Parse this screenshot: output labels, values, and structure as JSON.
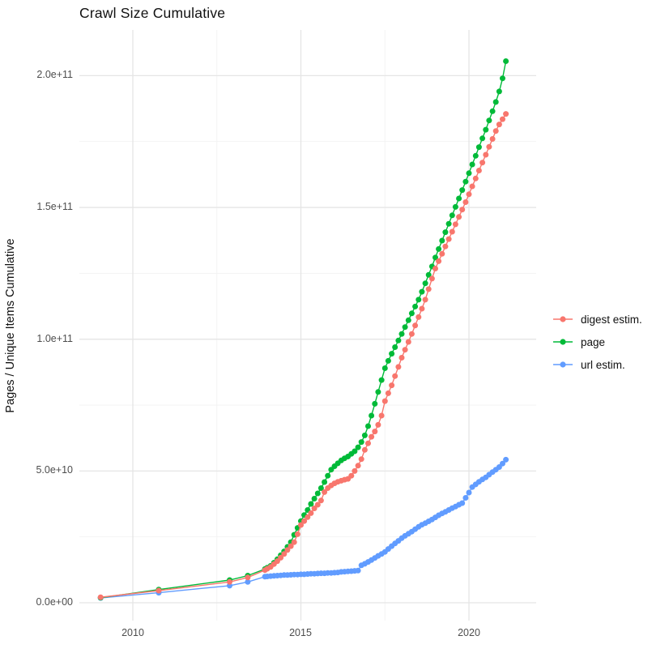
{
  "title": "Crawl Size Cumulative",
  "y_axis": {
    "title": "Pages / Unique Items Cumulative",
    "ticks": [
      "2.0e+11",
      "1.5e+11",
      "1.0e+11",
      "5.0e+10",
      "0.0e+00"
    ]
  },
  "x_axis": {
    "ticks": [
      "2010",
      "2015",
      "2020"
    ]
  },
  "legend": {
    "items": [
      {
        "label": "digest estim.",
        "color": "#F8766D"
      },
      {
        "label": "page",
        "color": "#00BA38"
      },
      {
        "label": "url estim.",
        "color": "#619CFF"
      }
    ]
  },
  "chart_data": {
    "type": "line",
    "title": "Crawl Size Cumulative",
    "xlabel": "",
    "ylabel": "Pages / Unique Items Cumulative",
    "xlim": [
      2008.4,
      2022.0
    ],
    "ylim": [
      0,
      216000000000.0
    ],
    "x_ticks": [
      2010,
      2015,
      2020
    ],
    "x_minor_ticks": [
      2012.5,
      2017.5
    ],
    "y_ticks": [
      0,
      50000000000.0,
      100000000000.0,
      150000000000.0,
      200000000000.0
    ],
    "y_minor_ticks": [
      25000000000.0,
      75000000000.0,
      125000000000.0,
      175000000000.0
    ],
    "grid": true,
    "legend_position": "right",
    "marker": "point",
    "series": [
      {
        "name": "url estim.",
        "color": "#619CFF",
        "points": [
          [
            2009.04,
            1800000000.0
          ],
          [
            2010.77,
            3800000000.0
          ],
          [
            2012.88,
            6500000000.0
          ],
          [
            2013.42,
            7900000000.0
          ],
          [
            2013.93,
            9900000000.0
          ],
          [
            2014.0,
            10000000000.0
          ],
          [
            2014.1,
            10100000000.0
          ],
          [
            2014.2,
            10200000000.0
          ],
          [
            2014.3,
            10300000000.0
          ],
          [
            2014.4,
            10400000000.0
          ],
          [
            2014.5,
            10500000000.0
          ],
          [
            2014.6,
            10500000000.0
          ],
          [
            2014.7,
            10600000000.0
          ],
          [
            2014.8,
            10700000000.0
          ],
          [
            2014.9,
            10700000000.0
          ],
          [
            2015.0,
            10800000000.0
          ],
          [
            2015.1,
            10800000000.0
          ],
          [
            2015.2,
            10900000000.0
          ],
          [
            2015.3,
            11000000000.0
          ],
          [
            2015.4,
            11000000000.0
          ],
          [
            2015.5,
            11100000000.0
          ],
          [
            2015.6,
            11200000000.0
          ],
          [
            2015.7,
            11200000000.0
          ],
          [
            2015.8,
            11300000000.0
          ],
          [
            2015.9,
            11300000000.0
          ],
          [
            2016.0,
            11400000000.0
          ],
          [
            2016.1,
            11500000000.0
          ],
          [
            2016.2,
            11700000000.0
          ],
          [
            2016.3,
            11800000000.0
          ],
          [
            2016.4,
            11900000000.0
          ],
          [
            2016.5,
            12000000000.0
          ],
          [
            2016.6,
            12100000000.0
          ],
          [
            2016.7,
            12200000000.0
          ],
          [
            2016.8,
            14200000000.0
          ],
          [
            2016.9,
            14800000000.0
          ],
          [
            2017.0,
            15500000000.0
          ],
          [
            2017.1,
            16200000000.0
          ],
          [
            2017.2,
            17000000000.0
          ],
          [
            2017.3,
            17800000000.0
          ],
          [
            2017.4,
            18500000000.0
          ],
          [
            2017.5,
            19300000000.0
          ],
          [
            2017.6,
            20400000000.0
          ],
          [
            2017.7,
            21500000000.0
          ],
          [
            2017.8,
            22500000000.0
          ],
          [
            2017.9,
            23500000000.0
          ],
          [
            2018.0,
            24500000000.0
          ],
          [
            2018.1,
            25400000000.0
          ],
          [
            2018.2,
            26200000000.0
          ],
          [
            2018.3,
            27000000000.0
          ],
          [
            2018.4,
            27900000000.0
          ],
          [
            2018.5,
            28800000000.0
          ],
          [
            2018.6,
            29600000000.0
          ],
          [
            2018.7,
            30200000000.0
          ],
          [
            2018.8,
            30900000000.0
          ],
          [
            2018.9,
            31600000000.0
          ],
          [
            2019.0,
            32400000000.0
          ],
          [
            2019.1,
            33200000000.0
          ],
          [
            2019.2,
            33900000000.0
          ],
          [
            2019.3,
            34500000000.0
          ],
          [
            2019.4,
            35200000000.0
          ],
          [
            2019.5,
            35900000000.0
          ],
          [
            2019.6,
            36500000000.0
          ],
          [
            2019.7,
            37200000000.0
          ],
          [
            2019.8,
            37800000000.0
          ],
          [
            2019.9,
            39800000000.0
          ],
          [
            2020.0,
            41800000000.0
          ],
          [
            2020.1,
            43900000000.0
          ],
          [
            2020.2,
            44900000000.0
          ],
          [
            2020.3,
            45900000000.0
          ],
          [
            2020.4,
            46800000000.0
          ],
          [
            2020.5,
            47600000000.0
          ],
          [
            2020.6,
            48600000000.0
          ],
          [
            2020.7,
            49600000000.0
          ],
          [
            2020.8,
            50500000000.0
          ],
          [
            2020.9,
            51500000000.0
          ],
          [
            2021.0,
            52800000000.0
          ],
          [
            2021.1,
            54300000000.0
          ]
        ]
      },
      {
        "name": "page",
        "color": "#00BA38",
        "points": [
          [
            2009.04,
            1900000000.0
          ],
          [
            2010.77,
            5000000000.0
          ],
          [
            2012.88,
            8600000000.0
          ],
          [
            2013.42,
            10300000000.0
          ],
          [
            2013.93,
            12800000000.0
          ],
          [
            2014.0,
            13300000000.0
          ],
          [
            2014.1,
            14000000000.0
          ],
          [
            2014.2,
            15200000000.0
          ],
          [
            2014.3,
            16500000000.0
          ],
          [
            2014.4,
            18000000000.0
          ],
          [
            2014.5,
            19500000000.0
          ],
          [
            2014.6,
            21200000000.0
          ],
          [
            2014.7,
            23000000000.0
          ],
          [
            2014.8,
            25800000000.0
          ],
          [
            2014.9,
            28400000000.0
          ],
          [
            2015.0,
            31000000000.0
          ],
          [
            2015.1,
            33300000000.0
          ],
          [
            2015.2,
            35200000000.0
          ],
          [
            2015.3,
            37500000000.0
          ],
          [
            2015.4,
            39500000000.0
          ],
          [
            2015.5,
            41500000000.0
          ],
          [
            2015.6,
            43500000000.0
          ],
          [
            2015.7,
            45800000000.0
          ],
          [
            2015.8,
            48200000000.0
          ],
          [
            2015.9,
            50500000000.0
          ],
          [
            2016.0,
            51800000000.0
          ],
          [
            2016.1,
            52900000000.0
          ],
          [
            2016.2,
            54000000000.0
          ],
          [
            2016.3,
            54800000000.0
          ],
          [
            2016.4,
            55500000000.0
          ],
          [
            2016.5,
            56500000000.0
          ],
          [
            2016.6,
            57500000000.0
          ],
          [
            2016.7,
            59000000000.0
          ],
          [
            2016.8,
            61000000000.0
          ],
          [
            2016.9,
            63500000000.0
          ],
          [
            2017.0,
            67000000000.0
          ],
          [
            2017.1,
            71000000000.0
          ],
          [
            2017.2,
            75500000000.0
          ],
          [
            2017.3,
            80000000000.0
          ],
          [
            2017.4,
            84500000000.0
          ],
          [
            2017.5,
            89000000000.0
          ],
          [
            2017.6,
            91800000000.0
          ],
          [
            2017.7,
            94500000000.0
          ],
          [
            2017.8,
            97000000000.0
          ],
          [
            2017.9,
            99500000000.0
          ],
          [
            2018.0,
            102000000000.0
          ],
          [
            2018.1,
            104600000000.0
          ],
          [
            2018.2,
            107200000000.0
          ],
          [
            2018.3,
            109800000000.0
          ],
          [
            2018.4,
            112400000000.0
          ],
          [
            2018.5,
            115000000000.0
          ],
          [
            2018.6,
            118000000000.0
          ],
          [
            2018.7,
            121200000000.0
          ],
          [
            2018.8,
            124400000000.0
          ],
          [
            2018.9,
            127600000000.0
          ],
          [
            2019.0,
            131000000000.0
          ],
          [
            2019.1,
            134200000000.0
          ],
          [
            2019.2,
            137400000000.0
          ],
          [
            2019.3,
            140600000000.0
          ],
          [
            2019.4,
            143800000000.0
          ],
          [
            2019.5,
            147000000000.0
          ],
          [
            2019.6,
            150200000000.0
          ],
          [
            2019.7,
            153400000000.0
          ],
          [
            2019.8,
            156600000000.0
          ],
          [
            2019.9,
            159800000000.0
          ],
          [
            2020.0,
            163000000000.0
          ],
          [
            2020.1,
            166300000000.0
          ],
          [
            2020.2,
            169600000000.0
          ],
          [
            2020.3,
            172900000000.0
          ],
          [
            2020.4,
            176200000000.0
          ],
          [
            2020.5,
            179500000000.0
          ],
          [
            2020.6,
            183000000000.0
          ],
          [
            2020.7,
            186500000000.0
          ],
          [
            2020.8,
            190000000000.0
          ],
          [
            2020.9,
            194000000000.0
          ],
          [
            2021.0,
            199000000000.0
          ],
          [
            2021.1,
            205500000000.0
          ]
        ]
      },
      {
        "name": "digest estim.",
        "color": "#F8766D",
        "points": [
          [
            2009.04,
            2100000000.0
          ],
          [
            2010.77,
            4600000000.0
          ],
          [
            2012.88,
            7900000000.0
          ],
          [
            2013.42,
            9600000000.0
          ],
          [
            2013.93,
            12400000000.0
          ],
          [
            2014.0,
            12900000000.0
          ],
          [
            2014.1,
            13600000000.0
          ],
          [
            2014.2,
            14700000000.0
          ],
          [
            2014.3,
            15800000000.0
          ],
          [
            2014.4,
            17100000000.0
          ],
          [
            2014.5,
            18500000000.0
          ],
          [
            2014.6,
            20000000000.0
          ],
          [
            2014.7,
            21500000000.0
          ],
          [
            2014.8,
            23000000000.0
          ],
          [
            2014.9,
            26000000000.0
          ],
          [
            2015.0,
            29500000000.0
          ],
          [
            2015.1,
            31000000000.0
          ],
          [
            2015.2,
            32500000000.0
          ],
          [
            2015.3,
            34000000000.0
          ],
          [
            2015.4,
            35800000000.0
          ],
          [
            2015.5,
            37200000000.0
          ],
          [
            2015.6,
            38800000000.0
          ],
          [
            2015.7,
            42000000000.0
          ],
          [
            2015.8,
            43500000000.0
          ],
          [
            2015.9,
            44500000000.0
          ],
          [
            2016.0,
            45300000000.0
          ],
          [
            2016.1,
            45900000000.0
          ],
          [
            2016.2,
            46300000000.0
          ],
          [
            2016.3,
            46700000000.0
          ],
          [
            2016.4,
            47000000000.0
          ],
          [
            2016.5,
            48200000000.0
          ],
          [
            2016.6,
            50000000000.0
          ],
          [
            2016.7,
            52000000000.0
          ],
          [
            2016.8,
            54500000000.0
          ],
          [
            2016.9,
            58000000000.0
          ],
          [
            2017.0,
            60500000000.0
          ],
          [
            2017.1,
            63000000000.0
          ],
          [
            2017.2,
            65000000000.0
          ],
          [
            2017.3,
            67500000000.0
          ],
          [
            2017.4,
            71000000000.0
          ],
          [
            2017.5,
            76500000000.0
          ],
          [
            2017.6,
            79500000000.0
          ],
          [
            2017.7,
            82500000000.0
          ],
          [
            2017.8,
            86000000000.0
          ],
          [
            2017.9,
            89500000000.0
          ],
          [
            2018.0,
            93000000000.0
          ],
          [
            2018.1,
            96000000000.0
          ],
          [
            2018.2,
            99000000000.0
          ],
          [
            2018.3,
            102000000000.0
          ],
          [
            2018.4,
            105200000000.0
          ],
          [
            2018.5,
            108400000000.0
          ],
          [
            2018.6,
            111600000000.0
          ],
          [
            2018.7,
            115000000000.0
          ],
          [
            2018.8,
            119000000000.0
          ],
          [
            2018.9,
            123000000000.0
          ],
          [
            2019.0,
            126800000000.0
          ],
          [
            2019.1,
            129600000000.0
          ],
          [
            2019.2,
            132400000000.0
          ],
          [
            2019.3,
            135200000000.0
          ],
          [
            2019.4,
            138000000000.0
          ],
          [
            2019.5,
            140800000000.0
          ],
          [
            2019.6,
            143600000000.0
          ],
          [
            2019.7,
            146400000000.0
          ],
          [
            2019.8,
            149200000000.0
          ],
          [
            2019.9,
            152000000000.0
          ],
          [
            2020.0,
            155000000000.0
          ],
          [
            2020.1,
            158000000000.0
          ],
          [
            2020.2,
            161000000000.0
          ],
          [
            2020.3,
            164000000000.0
          ],
          [
            2020.4,
            167000000000.0
          ],
          [
            2020.5,
            170000000000.0
          ],
          [
            2020.6,
            173000000000.0
          ],
          [
            2020.7,
            176000000000.0
          ],
          [
            2020.8,
            179000000000.0
          ],
          [
            2020.9,
            181500000000.0
          ],
          [
            2021.0,
            183500000000.0
          ],
          [
            2021.1,
            185500000000.0
          ]
        ]
      }
    ]
  }
}
